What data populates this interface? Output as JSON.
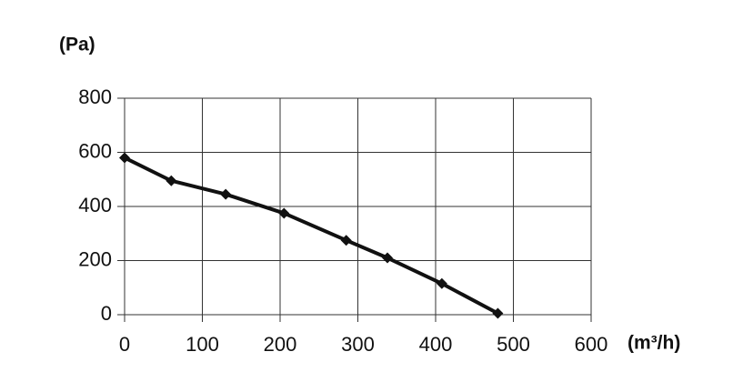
{
  "chart_data": {
    "type": "line",
    "y_label": "(Pa)",
    "x_label": "(m³/h)",
    "x": [
      0,
      60,
      130,
      205,
      285,
      338,
      408,
      480
    ],
    "series": [
      {
        "color": "#111111",
        "values": [
          580,
          495,
          445,
          375,
          275,
          210,
          115,
          5
        ]
      }
    ],
    "xlim": [
      0,
      600
    ],
    "xticks": [
      0,
      100,
      200,
      300,
      400,
      500,
      600
    ],
    "ylim": [
      0,
      800
    ],
    "yticks": [
      0,
      200,
      400,
      600,
      800
    ],
    "grid": true
  }
}
